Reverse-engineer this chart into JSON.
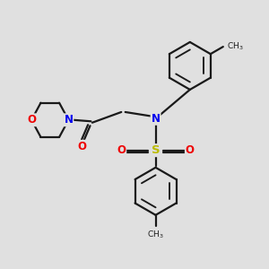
{
  "background_color": "#e0e0e0",
  "bond_color": "#1a1a1a",
  "atom_colors": {
    "N": "#0000ee",
    "O": "#ee0000",
    "S": "#bbbb00",
    "C": "#1a1a1a"
  },
  "figsize": [
    3.0,
    3.0
  ],
  "dpi": 100
}
